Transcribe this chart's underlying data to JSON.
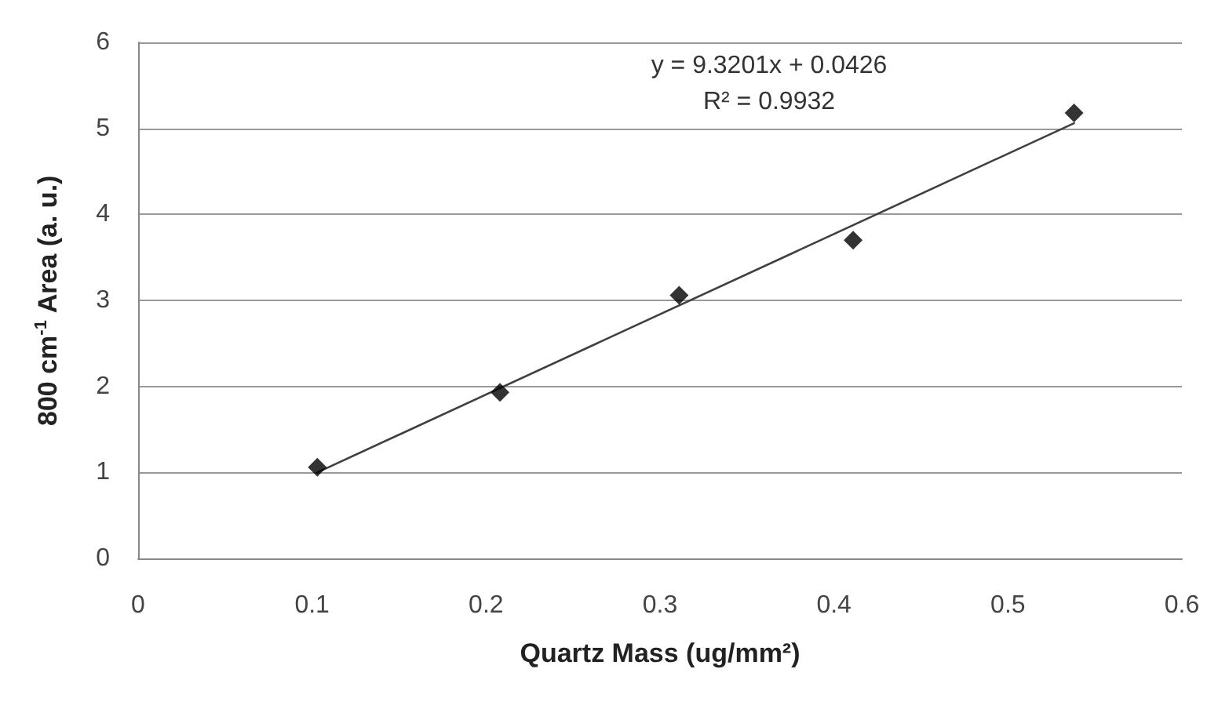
{
  "chart_data": {
    "type": "scatter",
    "xlabel": "Quartz Mass (ug/mm²)",
    "ylabel": "800 cm$^{-1}$ Area (a. u.)",
    "annotations": [
      "y = 9.3201x + 0.0426",
      "R² = 0.9932"
    ],
    "series": [
      {
        "color": "#000000",
        "marker": "diamond",
        "x": [
          0.103,
          0.208,
          0.311,
          0.411,
          0.538
        ],
        "values": [
          1.06,
          1.93,
          3.06,
          3.7,
          5.18
        ]
      },
      {
        "type": "line",
        "color": "#404040",
        "marker": "none",
        "line_style": "solid",
        "x": [
          0.103,
          0.538
        ],
        "values": [
          1.0,
          5.06
        ]
      }
    ],
    "xlim": [
      0,
      0.6
    ],
    "xticks": [
      0,
      0.1,
      0.2,
      0.3,
      0.4,
      0.5,
      0.6
    ],
    "ylim": [
      0,
      6
    ],
    "yticks": [
      0,
      1,
      2,
      3,
      4,
      5,
      6
    ],
    "grid": "y"
  }
}
